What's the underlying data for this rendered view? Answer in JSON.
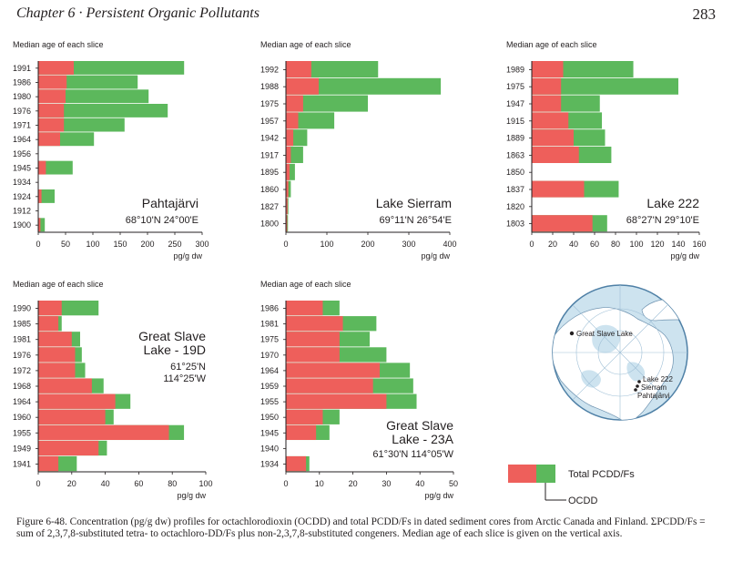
{
  "header": {
    "chapter": "Chapter 6 · Persistent Organic Pollutants",
    "page": "283"
  },
  "caption": "Figure 6-48. Concentration (pg/g dw) profiles for octachlorodioxin (OCDD) and total PCDD/Fs in dated sediment cores from Arctic Canada and Finland. ΣPCDD/Fs = sum of 2,3,7,8-substituted tetra- to octachloro-DD/Fs plus non-2,3,7,8-substituted congeners. Median age of each slice is given on the vertical axis.",
  "colors": {
    "ocdd": "#ee5f5b",
    "total": "#5cb85c",
    "ink": "#231f20"
  },
  "legend": {
    "total": "Total PCDD/Fs",
    "ocdd": "OCDD"
  },
  "map": {
    "labels": [
      "Great Slave Lake",
      "Lake 222",
      "Sierram",
      "Pahtajärvi"
    ]
  },
  "chart_data": [
    {
      "type": "bar",
      "orientation": "horizontal",
      "stacked": "overlay",
      "title_lines": [
        "Pahtajärvi"
      ],
      "coords": "68°10'N 24°00'E",
      "ytitle": "Median age of each slice",
      "xlabel": "pg/g dw",
      "xlim": [
        0,
        300
      ],
      "xticks": [
        0,
        50,
        100,
        150,
        200,
        250,
        300
      ],
      "categories": [
        "1991",
        "1986",
        "1980",
        "1976",
        "1971",
        "1964",
        "1956",
        "1945",
        "1934",
        "1924",
        "1912",
        "1900"
      ],
      "series": [
        {
          "name": "OCDD",
          "values": [
            65,
            52,
            50,
            47,
            47,
            40,
            0,
            14,
            0,
            6,
            0,
            4
          ]
        },
        {
          "name": "Total PCDD/Fs",
          "values": [
            267,
            182,
            202,
            237,
            158,
            102,
            0,
            63,
            0,
            30,
            0,
            12
          ]
        }
      ]
    },
    {
      "type": "bar",
      "orientation": "horizontal",
      "stacked": "overlay",
      "title_lines": [
        "Lake Sierram"
      ],
      "coords": "69°11'N 26°54'E",
      "ytitle": "Median age of each slice",
      "xlabel": "pg/g dw",
      "xlim": [
        0,
        400
      ],
      "xticks": [
        0,
        100,
        200,
        300,
        400
      ],
      "categories": [
        "1992",
        "1988",
        "1975",
        "1957",
        "1942",
        "1917",
        "1895",
        "1860",
        "1827",
        "1800"
      ],
      "series": [
        {
          "name": "OCDD",
          "values": [
            62,
            80,
            42,
            30,
            18,
            12,
            9,
            6,
            4,
            3
          ]
        },
        {
          "name": "Total PCDD/Fs",
          "values": [
            225,
            378,
            200,
            118,
            52,
            42,
            22,
            12,
            6,
            5
          ]
        }
      ]
    },
    {
      "type": "bar",
      "orientation": "horizontal",
      "stacked": "overlay",
      "title_lines": [
        "Lake 222"
      ],
      "coords": "68°27'N 29°10'E",
      "ytitle": "Median age of each slice",
      "xlabel": "pg/g dw",
      "xlim": [
        0,
        160
      ],
      "xticks": [
        0,
        20,
        40,
        60,
        80,
        100,
        120,
        140,
        160
      ],
      "categories": [
        "1989",
        "1975",
        "1947",
        "1915",
        "1889",
        "1863",
        "1850",
        "1837",
        "1820",
        "1803"
      ],
      "series": [
        {
          "name": "OCDD",
          "values": [
            30,
            28,
            28,
            35,
            40,
            45,
            0,
            50,
            0,
            58
          ]
        },
        {
          "name": "Total PCDD/Fs",
          "values": [
            97,
            140,
            65,
            67,
            70,
            76,
            0,
            83,
            0,
            72
          ]
        }
      ]
    },
    {
      "type": "bar",
      "orientation": "horizontal",
      "stacked": "overlay",
      "title_lines": [
        "Great Slave",
        "Lake - 19D"
      ],
      "coords_lines": [
        "61°25'N",
        "114°25'W"
      ],
      "ytitle": "Median age of each slice",
      "xlabel": "pg/g dw",
      "xlim": [
        0,
        100
      ],
      "xticks": [
        0,
        20,
        40,
        60,
        80,
        100
      ],
      "categories": [
        "1990",
        "1985",
        "1981",
        "1976",
        "1972",
        "1968",
        "1964",
        "1960",
        "1955",
        "1949",
        "1941"
      ],
      "series": [
        {
          "name": "OCDD",
          "values": [
            14,
            12,
            20,
            22,
            22,
            32,
            46,
            40,
            78,
            36,
            12
          ]
        },
        {
          "name": "Total PCDD/Fs",
          "values": [
            36,
            14,
            25,
            26,
            28,
            39,
            55,
            45,
            87,
            41,
            23
          ]
        }
      ]
    },
    {
      "type": "bar",
      "orientation": "horizontal",
      "stacked": "overlay",
      "title_lines": [
        "Great Slave",
        "Lake - 23A"
      ],
      "coords": "61°30'N 114°05'W",
      "ytitle": "Median age of each slice",
      "xlabel": "pg/g dw",
      "xlim": [
        0,
        50
      ],
      "xticks": [
        0,
        10,
        20,
        30,
        40,
        50
      ],
      "categories": [
        "1986",
        "1981",
        "1975",
        "1970",
        "1964",
        "1959",
        "1955",
        "1950",
        "1945",
        "1940",
        "1934"
      ],
      "series": [
        {
          "name": "OCDD",
          "values": [
            11,
            17,
            16,
            16,
            28,
            26,
            30,
            11,
            9,
            0,
            6
          ]
        },
        {
          "name": "Total PCDD/Fs",
          "values": [
            16,
            27,
            25,
            30,
            37,
            38,
            39,
            16,
            13,
            0,
            7
          ]
        }
      ]
    }
  ]
}
